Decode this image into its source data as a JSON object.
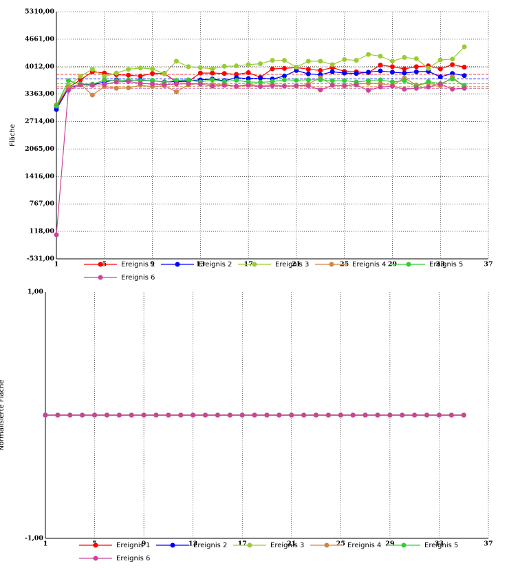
{
  "chart_data": [
    {
      "type": "line",
      "y_label": "Fläche",
      "x": [
        1,
        2,
        3,
        4,
        5,
        6,
        7,
        8,
        9,
        10,
        11,
        12,
        13,
        14,
        15,
        16,
        17,
        18,
        19,
        20,
        21,
        22,
        23,
        24,
        25,
        26,
        27,
        28,
        29,
        30,
        31,
        32,
        33,
        34,
        35
      ],
      "xlim": [
        1,
        37
      ],
      "xticks": [
        1,
        5,
        9,
        13,
        17,
        21,
        25,
        29,
        33,
        37
      ],
      "ylim": [
        -531,
        5310
      ],
      "yticks": [
        {
          "value": -531,
          "label": "-531,00"
        },
        {
          "value": 118,
          "label": "118,00"
        },
        {
          "value": 767,
          "label": "767,00"
        },
        {
          "value": 1416,
          "label": "1416,00"
        },
        {
          "value": 2065,
          "label": "2065,00"
        },
        {
          "value": 2714,
          "label": "2714,00"
        },
        {
          "value": 3363,
          "label": "3363,00"
        },
        {
          "value": 4012,
          "label": "4012,00"
        },
        {
          "value": 4661,
          "label": "4661,00"
        },
        {
          "value": 5310,
          "label": "5310,00"
        }
      ],
      "grid": "both",
      "legend_position": "bottom",
      "series": [
        {
          "name": "Ereignis 1",
          "color": "#ff0000",
          "reference": 3830,
          "values": [
            3050,
            3520,
            3700,
            3890,
            3860,
            3820,
            3810,
            3790,
            3850,
            3850,
            3650,
            3660,
            3860,
            3860,
            3850,
            3830,
            3870,
            3760,
            3960,
            3970,
            3990,
            3950,
            3920,
            3990,
            3900,
            3890,
            3870,
            4050,
            4010,
            3960,
            4010,
            4030,
            3960,
            4060,
            4000
          ]
        },
        {
          "name": "Ereignis 2",
          "color": "#0000ff",
          "reference": 3720,
          "values": [
            3000,
            3500,
            3600,
            3580,
            3650,
            3700,
            3680,
            3700,
            3680,
            3650,
            3660,
            3680,
            3700,
            3720,
            3680,
            3750,
            3730,
            3740,
            3720,
            3790,
            3920,
            3840,
            3820,
            3890,
            3860,
            3850,
            3880,
            3910,
            3880,
            3860,
            3890,
            3900,
            3770,
            3850,
            3800
          ]
        },
        {
          "name": "Ereignis 3",
          "color": "#99cc33",
          "reference": 3990,
          "values": [
            3110,
            3560,
            3780,
            3950,
            3780,
            3860,
            3950,
            3980,
            3960,
            3840,
            4140,
            4010,
            3990,
            3960,
            4020,
            4030,
            4060,
            4080,
            4160,
            4160,
            4000,
            4140,
            4140,
            4060,
            4180,
            4160,
            4300,
            4260,
            4140,
            4230,
            4200,
            3970,
            4170,
            4190,
            4480
          ]
        },
        {
          "name": "Ereignis 4",
          "color": "#cc8844",
          "reference": 3540,
          "values": [
            3100,
            3520,
            3600,
            3340,
            3540,
            3500,
            3510,
            3570,
            3540,
            3560,
            3420,
            3580,
            3620,
            3590,
            3600,
            3540,
            3600,
            3560,
            3590,
            3560,
            3550,
            3600,
            3750,
            3580,
            3560,
            3600,
            3620,
            3610,
            3570,
            3740,
            3580,
            3620,
            3560,
            3770,
            3530
          ]
        },
        {
          "name": "Ereignis 5",
          "color": "#33cc33",
          "reference": 3610,
          "values": [
            3080,
            3680,
            3600,
            3600,
            3690,
            3680,
            3700,
            3680,
            3690,
            3640,
            3690,
            3700,
            3650,
            3700,
            3660,
            3690,
            3650,
            3640,
            3660,
            3700,
            3690,
            3700,
            3700,
            3680,
            3680,
            3650,
            3680,
            3700,
            3650,
            3680,
            3540,
            3660,
            3610,
            3720,
            3570
          ]
        },
        {
          "name": "Ereignis 6",
          "color": "#cc4499",
          "reference": 3500,
          "values": [
            39,
            3450,
            3580,
            3570,
            3590,
            3650,
            3660,
            3620,
            3600,
            3590,
            3600,
            3610,
            3600,
            3550,
            3570,
            3550,
            3570,
            3540,
            3560,
            3550,
            3560,
            3560,
            3460,
            3570,
            3560,
            3580,
            3450,
            3530,
            3550,
            3480,
            3500,
            3530,
            3600,
            3480,
            3500
          ]
        }
      ]
    },
    {
      "type": "line",
      "y_label": "Normalisierte Fläche",
      "x": [
        1,
        2,
        3,
        4,
        5,
        6,
        7,
        8,
        9,
        10,
        11,
        12,
        13,
        14,
        15,
        16,
        17,
        18,
        19,
        20,
        21,
        22,
        23,
        24,
        25,
        26,
        27,
        28,
        29,
        30,
        31,
        32,
        33,
        34,
        35
      ],
      "xlim": [
        1,
        37
      ],
      "xticks": [
        1,
        5,
        9,
        13,
        17,
        21,
        25,
        29,
        33,
        37
      ],
      "ylim": [
        -1,
        1
      ],
      "yticks": [
        {
          "value": -1,
          "label": "-1,00"
        },
        {
          "value": 1,
          "label": "1,00"
        }
      ],
      "grid": "x",
      "legend_position": "bottom",
      "series": [
        {
          "name": "Ereignis 1",
          "color": "#ff0000",
          "values": [
            0,
            0,
            0,
            0,
            0,
            0,
            0,
            0,
            0,
            0,
            0,
            0,
            0,
            0,
            0,
            0,
            0,
            0,
            0,
            0,
            0,
            0,
            0,
            0,
            0,
            0,
            0,
            0,
            0,
            0,
            0,
            0,
            0,
            0,
            0
          ]
        },
        {
          "name": "Ereignis 2",
          "color": "#0000ff",
          "values": [
            0,
            0,
            0,
            0,
            0,
            0,
            0,
            0,
            0,
            0,
            0,
            0,
            0,
            0,
            0,
            0,
            0,
            0,
            0,
            0,
            0,
            0,
            0,
            0,
            0,
            0,
            0,
            0,
            0,
            0,
            0,
            0,
            0,
            0,
            0
          ]
        },
        {
          "name": "Ereignis 3",
          "color": "#99cc33",
          "values": [
            0,
            0,
            0,
            0,
            0,
            0,
            0,
            0,
            0,
            0,
            0,
            0,
            0,
            0,
            0,
            0,
            0,
            0,
            0,
            0,
            0,
            0,
            0,
            0,
            0,
            0,
            0,
            0,
            0,
            0,
            0,
            0,
            0,
            0,
            0
          ]
        },
        {
          "name": "Ereignis 4",
          "color": "#cc8844",
          "values": [
            0,
            0,
            0,
            0,
            0,
            0,
            0,
            0,
            0,
            0,
            0,
            0,
            0,
            0,
            0,
            0,
            0,
            0,
            0,
            0,
            0,
            0,
            0,
            0,
            0,
            0,
            0,
            0,
            0,
            0,
            0,
            0,
            0,
            0,
            0
          ]
        },
        {
          "name": "Ereignis 5",
          "color": "#33cc33",
          "values": [
            0,
            0,
            0,
            0,
            0,
            0,
            0,
            0,
            0,
            0,
            0,
            0,
            0,
            0,
            0,
            0,
            0,
            0,
            0,
            0,
            0,
            0,
            0,
            0,
            0,
            0,
            0,
            0,
            0,
            0,
            0,
            0,
            0,
            0,
            0
          ]
        },
        {
          "name": "Ereignis 6",
          "color": "#cc4499",
          "values": [
            0,
            0,
            0,
            0,
            0,
            0,
            0,
            0,
            0,
            0,
            0,
            0,
            0,
            0,
            0,
            0,
            0,
            0,
            0,
            0,
            0,
            0,
            0,
            0,
            0,
            0,
            0,
            0,
            0,
            0,
            0,
            0,
            0,
            0,
            0
          ]
        }
      ]
    }
  ]
}
